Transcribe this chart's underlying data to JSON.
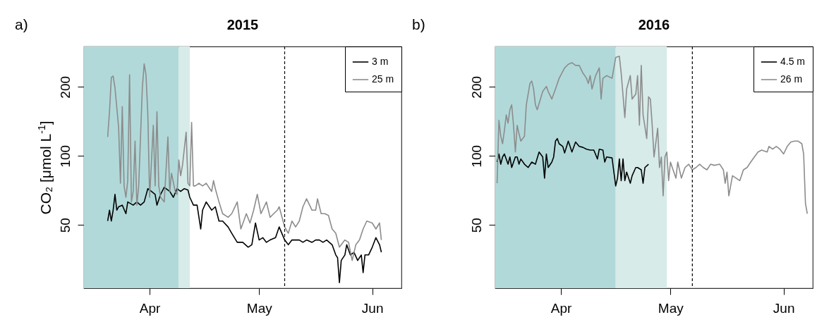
{
  "chart_data": [
    {
      "type": "line",
      "title": "2015",
      "ylabel": "CO₂ [μmol L$^{-1}$]",
      "annotations": [
        "a)"
      ],
      "log": true,
      "legend": "top right",
      "xlim": [
        "2015-03-14",
        "2015-06-09"
      ],
      "xticks": [
        {
          "value": "2015-04-01",
          "label": "Apr"
        },
        {
          "value": "2015-05-01",
          "label": "May"
        },
        {
          "value": "2015-06-01",
          "label": "Jun"
        }
      ],
      "ylim": [
        26.5,
        300
      ],
      "yticks": [
        50,
        100,
        200
      ],
      "bands": [
        {
          "axis": "x",
          "from": "2015-03-14",
          "to": "2015-04-09",
          "color": "#b2d9d9"
        },
        {
          "axis": "x",
          "from": "2015-04-09",
          "to": "2015-04-12",
          "color": "#d7ebe9"
        }
      ],
      "ref_lines": [
        {
          "axis": "x",
          "value": "2015-05-08",
          "color": "#000000",
          "line_style": "dashed"
        }
      ],
      "series": [
        {
          "name": "3 m",
          "color": "#000000",
          "x": [
            "2015-03-20T12:00",
            "2015-03-21",
            "2015-03-21T12:00",
            "2015-03-22",
            "2015-03-22T12:00",
            "2015-03-23",
            "2015-03-23T12:00",
            "2015-03-24T12:00",
            "2015-03-25T12:00",
            "2015-03-26",
            "2015-03-27T12:00",
            "2015-03-28T12:00",
            "2015-03-29T12:00",
            "2015-03-30T12:00",
            "2015-03-31T12:00",
            "2015-04-01T12:00",
            "2015-04-02T12:00",
            "2015-04-03",
            "2015-04-04",
            "2015-04-05",
            "2015-04-06T12:00",
            "2015-04-07T12:00",
            "2015-04-08T12:00",
            "2015-04-09T12:00",
            "2015-04-10T12:00",
            "2015-04-11T12:00",
            "2015-04-12",
            "2015-04-13",
            "2015-04-14",
            "2015-04-15",
            "2015-04-15T12:00",
            "2015-04-16T12:00",
            "2015-04-18",
            "2015-04-19",
            "2015-04-20",
            "2015-04-21",
            "2015-04-22T12:00",
            "2015-04-23T12:00",
            "2015-04-25",
            "2015-04-26T12:00",
            "2015-04-28",
            "2015-04-29",
            "2015-04-30",
            "2015-05-01",
            "2015-05-02",
            "2015-05-03",
            "2015-05-04",
            "2015-05-05T12:00",
            "2015-05-06T12:00",
            "2015-05-08",
            "2015-05-09",
            "2015-05-10",
            "2015-05-11",
            "2015-05-12",
            "2015-05-13",
            "2015-05-14",
            "2015-05-15T12:00",
            "2015-05-16T12:00",
            "2015-05-17T12:00",
            "2015-05-18T12:00",
            "2015-05-19T12:00",
            "2015-05-21",
            "2015-05-22",
            "2015-05-22T12:00",
            "2015-05-23",
            "2015-05-23T12:00",
            "2015-05-24T12:00",
            "2015-05-25",
            "2015-05-26",
            "2015-05-27",
            "2015-05-28",
            "2015-05-29",
            "2015-05-29T12:00",
            "2015-05-30",
            "2015-05-31",
            "2015-06-01",
            "2015-06-02",
            "2015-06-03",
            "2015-06-03T12:00"
          ],
          "values": [
            52,
            58,
            52,
            58,
            68,
            58,
            60,
            61,
            56,
            63,
            61,
            63,
            61,
            63,
            72,
            70,
            68,
            61,
            68,
            73,
            70,
            66,
            72,
            70,
            72,
            71,
            66,
            61,
            61,
            48,
            58,
            63,
            58,
            60,
            52,
            52,
            49,
            46,
            42,
            42,
            40,
            41,
            51,
            43,
            44,
            42,
            43,
            44,
            49,
            43,
            41,
            43,
            43,
            43,
            42,
            43,
            42,
            43,
            43,
            42,
            43,
            41,
            37,
            36,
            28,
            35,
            37,
            41,
            37,
            38,
            35,
            37,
            31,
            37,
            37,
            40,
            44,
            41,
            38
          ]
        },
        {
          "name": "25 m",
          "color": "#8c8c8c",
          "x": [
            "2015-03-20T12:00",
            "2015-03-21",
            "2015-03-21T12:00",
            "2015-03-22",
            "2015-03-22T12:00",
            "2015-03-23T12:00",
            "2015-03-24",
            "2015-03-24T12:00",
            "2015-03-25",
            "2015-03-25T12:00",
            "2015-03-26",
            "2015-03-26T12:00",
            "2015-03-27",
            "2015-03-27T12:00",
            "2015-03-28",
            "2015-03-28T12:00",
            "2015-03-29",
            "2015-03-30",
            "2015-03-30T12:00",
            "2015-03-31",
            "2015-03-31T12:00",
            "2015-04-01",
            "2015-04-02",
            "2015-04-02T12:00",
            "2015-04-03",
            "2015-04-03T12:00",
            "2015-04-04",
            "2015-04-05",
            "2015-04-06",
            "2015-04-06T12:00",
            "2015-04-07",
            "2015-04-08",
            "2015-04-08T12:00",
            "2015-04-09",
            "2015-04-09T12:00",
            "2015-04-10",
            "2015-04-11",
            "2015-04-11T12:00",
            "2015-04-12",
            "2015-04-12T12:00",
            "2015-04-13",
            "2015-04-13T12:00",
            "2015-04-14T12:00",
            "2015-04-15T12:00",
            "2015-04-16T12:00",
            "2015-04-18",
            "2015-04-18T12:00",
            "2015-04-19",
            "2015-04-20",
            "2015-04-21",
            "2015-04-22T12:00",
            "2015-04-23T12:00",
            "2015-04-25",
            "2015-04-26",
            "2015-04-27T12:00",
            "2015-04-28T12:00",
            "2015-04-29T12:00",
            "2015-04-30T12:00",
            "2015-05-01T12:00",
            "2015-05-03",
            "2015-05-04",
            "2015-05-05",
            "2015-05-06",
            "2015-05-06T12:00",
            "2015-05-08",
            "2015-05-09",
            "2015-05-10",
            "2015-05-11",
            "2015-05-12",
            "2015-05-13",
            "2015-05-14",
            "2015-05-15T12:00",
            "2015-05-16T12:00",
            "2015-05-17",
            "2015-05-18",
            "2015-05-19",
            "2015-05-20",
            "2015-05-21",
            "2015-05-22",
            "2015-05-23",
            "2015-05-24T12:00",
            "2015-05-25T12:00",
            "2015-05-26T12:00",
            "2015-05-27T12:00",
            "2015-05-28T12:00",
            "2015-05-29T12:00",
            "2015-05-30T12:00",
            "2015-06-01",
            "2015-06-02",
            "2015-06-03",
            "2015-06-03T12:00"
          ],
          "values": [
            121,
            156,
            220,
            223,
            198,
            133,
            76,
            164,
            74,
            66,
            78,
            226,
            63,
            70,
            116,
            61,
            74,
            198,
            252,
            226,
            152,
            66,
            136,
            74,
            156,
            74,
            66,
            63,
            121,
            70,
            84,
            70,
            68,
            96,
            82,
            91,
            127,
            76,
            74,
            140,
            74,
            74,
            76,
            74,
            76,
            70,
            78,
            72,
            63,
            56,
            54,
            56,
            63,
            48,
            56,
            51,
            58,
            68,
            56,
            63,
            54,
            56,
            58,
            60,
            49,
            46,
            52,
            49,
            52,
            60,
            65,
            58,
            58,
            65,
            56,
            56,
            55,
            48,
            46,
            40,
            43,
            42,
            35,
            41,
            43,
            48,
            52,
            51,
            48,
            51,
            43
          ]
        }
      ]
    },
    {
      "type": "line",
      "title": "2016",
      "annotations": [
        "b)"
      ],
      "log": true,
      "legend": "top right",
      "xlim": [
        "2016-03-14",
        "2016-06-09"
      ],
      "xticks": [
        {
          "value": "2016-04-01",
          "label": "Apr"
        },
        {
          "value": "2016-05-01",
          "label": "May"
        },
        {
          "value": "2016-06-01",
          "label": "Jun"
        }
      ],
      "ylim": [
        26.5,
        300
      ],
      "yticks": [
        50,
        100,
        200
      ],
      "bands": [
        {
          "axis": "x",
          "from": "2016-03-14",
          "to": "2016-04-16",
          "color": "#b2d9d9"
        },
        {
          "axis": "x",
          "from": "2016-04-16",
          "to": "2016-04-30",
          "color": "#d7ebe9"
        }
      ],
      "ref_lines": [
        {
          "axis": "x",
          "value": "2016-05-07",
          "color": "#000000",
          "line_style": "dashed"
        }
      ],
      "series": [
        {
          "name": "4.5 m",
          "color": "#000000",
          "x": [
            "2016-03-14T12:00",
            "2016-03-15",
            "2016-03-15T12:00",
            "2016-03-16",
            "2016-03-16T12:00",
            "2016-03-17T12:00",
            "2016-03-18",
            "2016-03-18T12:00",
            "2016-03-19T12:00",
            "2016-03-20",
            "2016-03-20T12:00",
            "2016-03-21",
            "2016-03-22",
            "2016-03-23",
            "2016-03-24",
            "2016-03-25",
            "2016-03-26",
            "2016-03-27",
            "2016-03-27T12:00",
            "2016-03-28",
            "2016-03-28T12:00",
            "2016-03-29T12:00",
            "2016-03-30",
            "2016-03-30T12:00",
            "2016-03-31",
            "2016-03-31T12:00",
            "2016-04-01T12:00",
            "2016-04-02",
            "2016-04-03",
            "2016-04-03T12:00",
            "2016-04-04",
            "2016-04-05",
            "2016-04-06",
            "2016-04-07",
            "2016-04-08",
            "2016-04-09",
            "2016-04-10",
            "2016-04-11",
            "2016-04-11T12:00",
            "2016-04-12T12:00",
            "2016-04-13",
            "2016-04-13T12:00",
            "2016-04-15",
            "2016-04-15T12:00",
            "2016-04-16",
            "2016-04-16T12:00",
            "2016-04-17",
            "2016-04-17T12:00",
            "2016-04-18",
            "2016-04-18T12:00",
            "2016-04-19",
            "2016-04-20",
            "2016-04-20T12:00",
            "2016-04-21T12:00",
            "2016-04-22",
            "2016-04-23",
            "2016-04-23T12:00",
            "2016-04-24",
            "2016-04-25"
          ],
          "values": [
            94,
            102,
            92,
            99,
            102,
            92,
            99,
            89,
            99,
            99,
            92,
            97,
            92,
            89,
            94,
            92,
            104,
            99,
            80,
            102,
            89,
            94,
            99,
            116,
            119,
            113,
            110,
            103,
            116,
            110,
            104,
            115,
            110,
            109,
            107,
            106,
            106,
            97,
            107,
            106,
            94,
            99,
            98,
            85,
            74,
            80,
            97,
            78,
            97,
            78,
            85,
            76,
            82,
            89,
            89,
            87,
            76,
            89,
            92
          ]
        },
        {
          "name": "26 m",
          "color": "#8c8c8c",
          "x": [
            "2016-03-14T12:00",
            "2016-03-15",
            "2016-03-15T12:00",
            "2016-03-16",
            "2016-03-16T12:00",
            "2016-03-17",
            "2016-03-17T12:00",
            "2016-03-18",
            "2016-03-18T12:00",
            "2016-03-19",
            "2016-03-19T12:00",
            "2016-03-20",
            "2016-03-20T12:00",
            "2016-03-21",
            "2016-03-22",
            "2016-03-22T12:00",
            "2016-03-23T12:00",
            "2016-03-24",
            "2016-03-24T12:00",
            "2016-03-25",
            "2016-03-25T12:00",
            "2016-03-27",
            "2016-03-28",
            "2016-03-28T12:00",
            "2016-03-29T12:00",
            "2016-03-30T12:00",
            "2016-03-31T12:00",
            "2016-04-02",
            "2016-04-03",
            "2016-04-04",
            "2016-04-05",
            "2016-04-06",
            "2016-04-07",
            "2016-04-08",
            "2016-04-08T12:00",
            "2016-04-09",
            "2016-04-09T12:00",
            "2016-04-10T12:00",
            "2016-04-11T12:00",
            "2016-04-12",
            "2016-04-12T12:00",
            "2016-04-13T12:00",
            "2016-04-15",
            "2016-04-15T12:00",
            "2016-04-16",
            "2016-04-17",
            "2016-04-17T12:00",
            "2016-04-18T12:00",
            "2016-04-19",
            "2016-04-20",
            "2016-04-20T12:00",
            "2016-04-21T12:00",
            "2016-04-22",
            "2016-04-22T12:00",
            "2016-04-23",
            "2016-04-23T12:00",
            "2016-04-24T12:00",
            "2016-04-25",
            "2016-04-25T12:00",
            "2016-04-26",
            "2016-04-26T12:00",
            "2016-04-27T12:00",
            "2016-04-28",
            "2016-04-28T12:00",
            "2016-04-29",
            "2016-04-29T12:00",
            "2016-04-30",
            "2016-04-30T12:00",
            "2016-05-01",
            "2016-05-01T12:00",
            "2016-05-02T12:00",
            "2016-05-03",
            "2016-05-04",
            "2016-05-05",
            "2016-05-06",
            "2016-05-07",
            "2016-05-08",
            "2016-05-09",
            "2016-05-10",
            "2016-05-11",
            "2016-05-12",
            "2016-05-13",
            "2016-05-14T12:00",
            "2016-05-15T12:00",
            "2016-05-16",
            "2016-05-16T12:00",
            "2016-05-17",
            "2016-05-18",
            "2016-05-19",
            "2016-05-20",
            "2016-05-21",
            "2016-05-22",
            "2016-05-23",
            "2016-05-24",
            "2016-05-25",
            "2016-05-26",
            "2016-05-27T12:00",
            "2016-05-28",
            "2016-05-29",
            "2016-05-30",
            "2016-05-31",
            "2016-06-01",
            "2016-06-02",
            "2016-06-03",
            "2016-06-04",
            "2016-06-05",
            "2016-06-06",
            "2016-06-06T12:00",
            "2016-06-07",
            "2016-06-07T12:00"
          ],
          "values": [
            76,
            143,
            122,
            113,
            129,
            151,
            139,
            159,
            167,
            136,
            104,
            136,
            125,
            116,
            122,
            167,
            207,
            212,
            196,
            167,
            159,
            191,
            201,
            191,
            177,
            196,
            218,
            242,
            251,
            255,
            248,
            248,
            230,
            218,
            207,
            224,
            196,
            224,
            242,
            177,
            218,
            224,
            218,
            242,
            269,
            272,
            230,
            147,
            196,
            224,
            177,
            186,
            224,
            136,
            248,
            151,
            119,
            181,
            177,
            136,
            99,
            132,
            89,
            99,
            67,
            99,
            104,
            78,
            94,
            89,
            80,
            94,
            80,
            89,
            92,
            87,
            89,
            92,
            89,
            87,
            92,
            91,
            92,
            87,
            76,
            85,
            67,
            82,
            80,
            78,
            87,
            89,
            94,
            99,
            104,
            106,
            104,
            110,
            107,
            110,
            107,
            102,
            110,
            115,
            116,
            116,
            113,
            102,
            62,
            56
          ]
        }
      ]
    }
  ]
}
